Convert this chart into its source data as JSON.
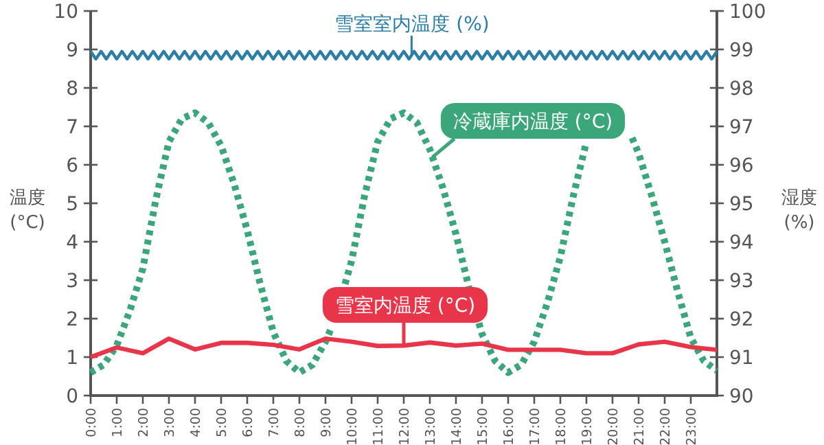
{
  "chart_data": {
    "type": "line",
    "xlabel": null,
    "ylabel": "温度 (°C)",
    "y2label": "湿度 (%)",
    "xlim": [
      0,
      24
    ],
    "xticks": [
      {
        "value": 0,
        "label": "0:00"
      },
      {
        "value": 1,
        "label": "1:00"
      },
      {
        "value": 2,
        "label": "2:00"
      },
      {
        "value": 3,
        "label": "3:00"
      },
      {
        "value": 4,
        "label": "4:00"
      },
      {
        "value": 5,
        "label": "5:00"
      },
      {
        "value": 6,
        "label": "6:00"
      },
      {
        "value": 7,
        "label": "7:00"
      },
      {
        "value": 8,
        "label": "8:00"
      },
      {
        "value": 9,
        "label": "9:00"
      },
      {
        "value": 10,
        "label": "10:00"
      },
      {
        "value": 11,
        "label": "11:00"
      },
      {
        "value": 12,
        "label": "12:00"
      },
      {
        "value": 13,
        "label": "13:00"
      },
      {
        "value": 14,
        "label": "14:00"
      },
      {
        "value": 15,
        "label": "15:00"
      },
      {
        "value": 16,
        "label": "16:00"
      },
      {
        "value": 17,
        "label": "17:00"
      },
      {
        "value": 18,
        "label": "18:00"
      },
      {
        "value": 19,
        "label": "19:00"
      },
      {
        "value": 20,
        "label": "20:00"
      },
      {
        "value": 21,
        "label": "21:00"
      },
      {
        "value": 22,
        "label": "22:00"
      },
      {
        "value": 23,
        "label": "23:00"
      }
    ],
    "ylim": [
      0,
      10
    ],
    "yticks": [
      0,
      1,
      2,
      3,
      4,
      5,
      6,
      7,
      8,
      9,
      10
    ],
    "y2lim": [
      90,
      100
    ],
    "y2ticks": [
      90,
      91,
      92,
      93,
      94,
      95,
      96,
      97,
      98,
      99,
      100
    ],
    "grid": false,
    "legend": false,
    "marker": "none",
    "series": [
      {
        "name": "雪室室内温度 (%)",
        "color": "#2b7fa6",
        "axis": "y2",
        "line_style": "solid",
        "x": [
          0,
          0.2,
          0.4,
          0.6,
          0.8,
          1,
          1.2,
          1.4,
          1.6,
          1.8,
          2,
          2.2,
          2.4,
          2.6,
          2.8,
          3,
          3.2,
          3.4,
          3.6,
          3.8,
          4,
          4.2,
          4.4,
          4.6,
          4.8,
          5,
          5.2,
          5.4,
          5.6,
          5.8,
          6,
          6.2,
          6.4,
          6.6,
          6.8,
          7,
          7.2,
          7.4,
          7.6,
          7.8,
          8,
          8.2,
          8.4,
          8.6,
          8.8,
          9,
          9.2,
          9.4,
          9.6,
          9.8,
          10,
          10.2,
          10.4,
          10.6,
          10.8,
          11,
          11.2,
          11.4,
          11.6,
          11.8,
          12,
          12.2,
          12.4,
          12.6,
          12.8,
          13,
          13.2,
          13.4,
          13.6,
          13.8,
          14,
          14.2,
          14.4,
          14.6,
          14.8,
          15,
          15.2,
          15.4,
          15.6,
          15.8,
          16,
          16.2,
          16.4,
          16.6,
          16.8,
          17,
          17.2,
          17.4,
          17.6,
          17.8,
          18,
          18.2,
          18.4,
          18.6,
          18.8,
          19,
          19.2,
          19.4,
          19.6,
          19.8,
          20,
          20.2,
          20.4,
          20.6,
          20.8,
          21,
          21.2,
          21.4,
          21.6,
          21.8,
          22,
          22.2,
          22.4,
          22.6,
          22.8,
          23,
          23.2,
          23.4,
          23.6,
          23.8,
          24
        ],
        "values": [
          98.95,
          98.75,
          98.95,
          98.75,
          98.95,
          98.75,
          98.95,
          98.75,
          98.95,
          98.75,
          98.95,
          98.75,
          98.95,
          98.75,
          98.95,
          98.75,
          98.95,
          98.75,
          98.95,
          98.75,
          98.95,
          98.75,
          98.95,
          98.75,
          98.95,
          98.75,
          98.95,
          98.75,
          98.95,
          98.75,
          98.95,
          98.75,
          98.95,
          98.75,
          98.95,
          98.75,
          98.95,
          98.75,
          98.95,
          98.75,
          98.95,
          98.75,
          98.95,
          98.75,
          98.95,
          98.75,
          98.95,
          98.75,
          98.95,
          98.75,
          98.95,
          98.75,
          98.95,
          98.75,
          98.95,
          98.75,
          98.95,
          98.75,
          98.95,
          98.75,
          98.95,
          98.75,
          98.95,
          98.75,
          98.95,
          98.75,
          98.95,
          98.75,
          98.95,
          98.75,
          98.95,
          98.75,
          98.95,
          98.75,
          98.95,
          98.75,
          98.95,
          98.75,
          98.95,
          98.75,
          98.95,
          98.75,
          98.95,
          98.75,
          98.95,
          98.75,
          98.95,
          98.75,
          98.95,
          98.75,
          98.95,
          98.75,
          98.95,
          98.75,
          98.95,
          98.75,
          98.95,
          98.75,
          98.95,
          98.75,
          98.95,
          98.75,
          98.95,
          98.75,
          98.95,
          98.75,
          98.95,
          98.75,
          98.95,
          98.75,
          98.95,
          98.75,
          98.95,
          98.75,
          98.95,
          98.75,
          98.95,
          98.75,
          98.95,
          98.75,
          98.95
        ]
      },
      {
        "name": "冷蔵庫内温度 (°C)",
        "color": "#3aa67a",
        "line_style": "dotted",
        "x": [
          0,
          0.5,
          1,
          1.5,
          2,
          2.5,
          3,
          3.5,
          4,
          4.5,
          5,
          5.5,
          6,
          6.5,
          7,
          7.5,
          8,
          8.5,
          9,
          9.25,
          9.5,
          9.75,
          10,
          10.5,
          11,
          11.5,
          12,
          12.5,
          13,
          13.5,
          14,
          14.5,
          15,
          15.5,
          16,
          16.5,
          17,
          17.5,
          18,
          18.5,
          19,
          19.5,
          20,
          20.5,
          20.75,
          21,
          21.5,
          22,
          22.5,
          23,
          23.5,
          24
        ],
        "values": [
          0.6,
          0.8,
          1.3,
          2.2,
          3.3,
          5.1,
          6.6,
          7.2,
          7.35,
          7.1,
          6.5,
          5.5,
          4.3,
          2.9,
          1.65,
          0.9,
          0.6,
          0.8,
          1.4,
          1.8,
          null,
          2.9,
          3.5,
          5.2,
          6.6,
          7.2,
          7.35,
          7.1,
          6.4,
          5.4,
          4.2,
          2.8,
          1.6,
          0.9,
          0.6,
          0.8,
          1.4,
          2.4,
          3.6,
          5.2,
          6.6,
          null,
          null,
          null,
          6.7,
          6.3,
          5.2,
          4.0,
          2.7,
          1.5,
          0.9,
          0.65
        ]
      },
      {
        "name": "雪室内温度 (°C)",
        "color": "#e8354a",
        "line_style": "solid",
        "x": [
          0,
          1,
          2,
          3,
          4,
          5,
          6,
          7,
          8,
          9,
          10,
          11,
          12,
          13,
          14,
          15,
          16,
          17,
          18,
          19,
          20,
          21,
          22,
          23,
          24
        ],
        "values": [
          1.0,
          1.25,
          1.1,
          1.48,
          1.2,
          1.37,
          1.37,
          1.32,
          1.2,
          1.48,
          1.4,
          1.29,
          1.3,
          1.38,
          1.3,
          1.35,
          1.19,
          1.19,
          1.19,
          1.1,
          1.1,
          1.33,
          1.4,
          1.26,
          1.19
        ]
      }
    ]
  }
}
